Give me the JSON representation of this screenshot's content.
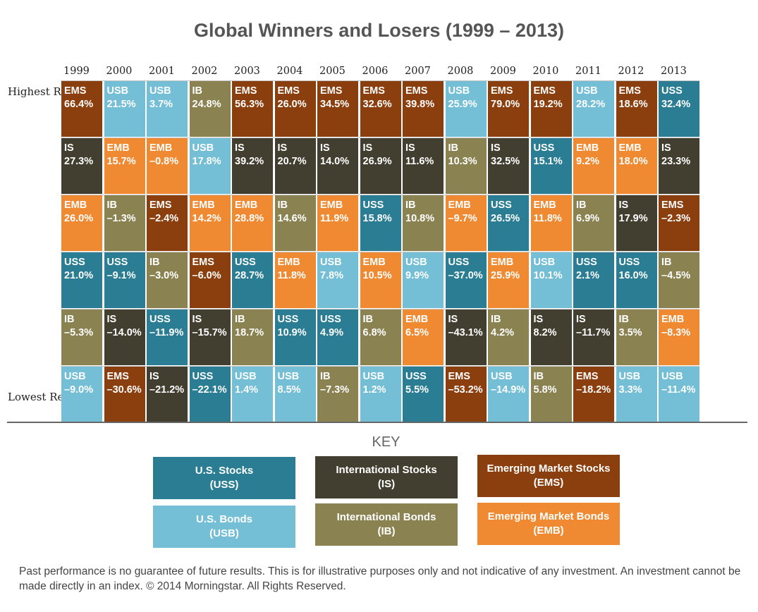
{
  "colors": {
    "USS": "#2b7d93",
    "USB": "#74bed6",
    "IS": "#433f30",
    "IB": "#8b8252",
    "EMS": "#8c3f0e",
    "EMB": "#f08a32"
  },
  "labels": {
    "highest": "Highest Returns",
    "lowest": "Lowest Returns",
    "key_title": "KEY",
    "footnote": "Past performance is no guarantee of future results. This is for illustrative purposes only and not indicative of any investment. An investment cannot be made directly in an index. © 2014 Morningstar. All Rights Reserved."
  },
  "key": [
    {
      "code": "USS",
      "name": "U.S. Stocks",
      "abbr": "(USS)"
    },
    {
      "code": "IS",
      "name": "International Stocks",
      "abbr": "(IS)"
    },
    {
      "code": "EMS",
      "name": "Emerging Market Stocks",
      "abbr": "(EMS)"
    },
    {
      "code": "USB",
      "name": "U.S. Bonds",
      "abbr": "(USB)"
    },
    {
      "code": "IB",
      "name": "International Bonds",
      "abbr": "(IB)"
    },
    {
      "code": "EMB",
      "name": "Emerging Market Bonds",
      "abbr": "(EMB)"
    }
  ],
  "chart_data": {
    "type": "table",
    "title": "Global Winners and Losers (1999 – 2013)",
    "years": [
      "1999",
      "2000",
      "2001",
      "2002",
      "2003",
      "2004",
      "2005",
      "2006",
      "2007",
      "2008",
      "2009",
      "2010",
      "2011",
      "2012",
      "2013"
    ],
    "columns": [
      [
        {
          "a": "EMS",
          "v": "66.4%"
        },
        {
          "a": "IS",
          "v": "27.3%"
        },
        {
          "a": "EMB",
          "v": "26.0%"
        },
        {
          "a": "USS",
          "v": "21.0%"
        },
        {
          "a": "IB",
          "v": "–5.3%"
        },
        {
          "a": "USB",
          "v": "–9.0%"
        }
      ],
      [
        {
          "a": "USB",
          "v": "21.5%"
        },
        {
          "a": "EMB",
          "v": "15.7%"
        },
        {
          "a": "IB",
          "v": "–1.3%"
        },
        {
          "a": "USS",
          "v": "–9.1%"
        },
        {
          "a": "IS",
          "v": "–14.0%"
        },
        {
          "a": "EMS",
          "v": "–30.6%"
        }
      ],
      [
        {
          "a": "USB",
          "v": "3.7%"
        },
        {
          "a": "EMB",
          "v": "–0.8%"
        },
        {
          "a": "EMS",
          "v": "–2.4%"
        },
        {
          "a": "IB",
          "v": "–3.0%"
        },
        {
          "a": "USS",
          "v": "–11.9%"
        },
        {
          "a": "IS",
          "v": "–21.2%"
        }
      ],
      [
        {
          "a": "IB",
          "v": "24.8%"
        },
        {
          "a": "USB",
          "v": "17.8%"
        },
        {
          "a": "EMB",
          "v": "14.2%"
        },
        {
          "a": "EMS",
          "v": "–6.0%"
        },
        {
          "a": "IS",
          "v": "–15.7%"
        },
        {
          "a": "USS",
          "v": "–22.1%"
        }
      ],
      [
        {
          "a": "EMS",
          "v": "56.3%"
        },
        {
          "a": "IS",
          "v": "39.2%"
        },
        {
          "a": "EMB",
          "v": "28.8%"
        },
        {
          "a": "USS",
          "v": "28.7%"
        },
        {
          "a": "IB",
          "v": "18.7%"
        },
        {
          "a": "USB",
          "v": "1.4%"
        }
      ],
      [
        {
          "a": "EMS",
          "v": "26.0%"
        },
        {
          "a": "IS",
          "v": "20.7%"
        },
        {
          "a": "IB",
          "v": "14.6%"
        },
        {
          "a": "EMB",
          "v": "11.8%"
        },
        {
          "a": "USS",
          "v": "10.9%"
        },
        {
          "a": "USB",
          "v": "8.5%"
        }
      ],
      [
        {
          "a": "EMS",
          "v": "34.5%"
        },
        {
          "a": "IS",
          "v": "14.0%"
        },
        {
          "a": "EMB",
          "v": "11.9%"
        },
        {
          "a": "USB",
          "v": "7.8%"
        },
        {
          "a": "USS",
          "v": "4.9%"
        },
        {
          "a": "IB",
          "v": "–7.3%"
        }
      ],
      [
        {
          "a": "EMS",
          "v": "32.6%"
        },
        {
          "a": "IS",
          "v": "26.9%"
        },
        {
          "a": "USS",
          "v": "15.8%"
        },
        {
          "a": "EMB",
          "v": "10.5%"
        },
        {
          "a": "IB",
          "v": "6.8%"
        },
        {
          "a": "USB",
          "v": "1.2%"
        }
      ],
      [
        {
          "a": "EMS",
          "v": "39.8%"
        },
        {
          "a": "IS",
          "v": "11.6%"
        },
        {
          "a": "IB",
          "v": "10.8%"
        },
        {
          "a": "USB",
          "v": "9.9%"
        },
        {
          "a": "EMB",
          "v": "6.5%"
        },
        {
          "a": "USS",
          "v": "5.5%"
        }
      ],
      [
        {
          "a": "USB",
          "v": "25.9%"
        },
        {
          "a": "IB",
          "v": "10.3%"
        },
        {
          "a": "EMB",
          "v": "–9.7%"
        },
        {
          "a": "USS",
          "v": "–37.0%"
        },
        {
          "a": "IS",
          "v": "–43.1%"
        },
        {
          "a": "EMS",
          "v": "–53.2%"
        }
      ],
      [
        {
          "a": "EMS",
          "v": "79.0%"
        },
        {
          "a": "IS",
          "v": "32.5%"
        },
        {
          "a": "USS",
          "v": "26.5%"
        },
        {
          "a": "EMB",
          "v": "25.9%"
        },
        {
          "a": "IB",
          "v": "4.2%"
        },
        {
          "a": "USB",
          "v": "–14.9%"
        }
      ],
      [
        {
          "a": "EMS",
          "v": "19.2%"
        },
        {
          "a": "USS",
          "v": "15.1%"
        },
        {
          "a": "EMB",
          "v": "11.8%"
        },
        {
          "a": "USB",
          "v": "10.1%"
        },
        {
          "a": "IS",
          "v": "8.2%"
        },
        {
          "a": "IB",
          "v": "5.8%"
        }
      ],
      [
        {
          "a": "USB",
          "v": "28.2%"
        },
        {
          "a": "EMB",
          "v": "9.2%"
        },
        {
          "a": "IB",
          "v": "6.9%"
        },
        {
          "a": "USS",
          "v": "2.1%"
        },
        {
          "a": "IS",
          "v": "–11.7%"
        },
        {
          "a": "EMS",
          "v": "–18.2%"
        }
      ],
      [
        {
          "a": "EMS",
          "v": "18.6%"
        },
        {
          "a": "EMB",
          "v": "18.0%"
        },
        {
          "a": "IS",
          "v": "17.9%"
        },
        {
          "a": "USS",
          "v": "16.0%"
        },
        {
          "a": "IB",
          "v": "3.5%"
        },
        {
          "a": "USB",
          "v": "3.3%"
        }
      ],
      [
        {
          "a": "USS",
          "v": "32.4%"
        },
        {
          "a": "IS",
          "v": "23.3%"
        },
        {
          "a": "EMS",
          "v": "–2.3%"
        },
        {
          "a": "IB",
          "v": "–4.5%"
        },
        {
          "a": "EMB",
          "v": "–8.3%"
        },
        {
          "a": "USB",
          "v": "–11.4%"
        }
      ]
    ]
  }
}
